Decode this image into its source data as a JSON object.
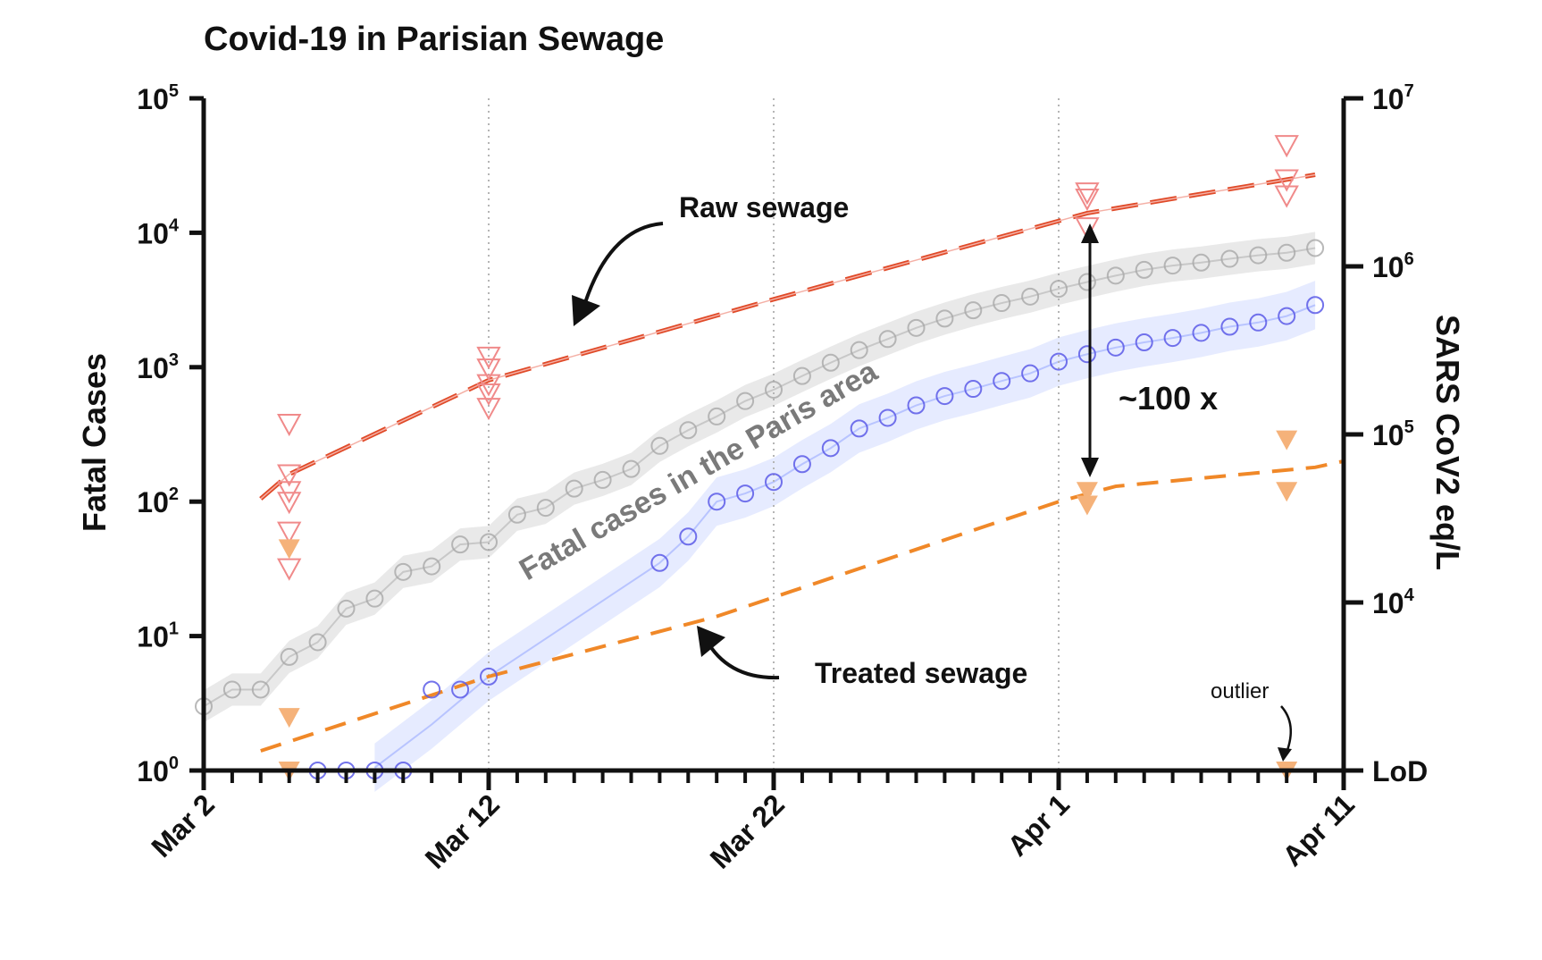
{
  "chart_data": {
    "type": "scatter",
    "title": "Covid-19 in Parisian Sewage",
    "ylabel_left": "Fatal Cases",
    "ylabel_right": "SARS CoV2 eq/L",
    "x_start_date": "Mar 2",
    "xlim_days": [
      0,
      40
    ],
    "x_tick_labels": [
      {
        "day": 0,
        "label": "Mar 2"
      },
      {
        "day": 10,
        "label": "Mar 12"
      },
      {
        "day": 20,
        "label": "Mar 22"
      },
      {
        "day": 30,
        "label": "Apr 1"
      },
      {
        "day": 40,
        "label": "Apr 11"
      }
    ],
    "grid": "vertical dotted lines at Mar 12, Mar 22, Apr 1",
    "left_axis": {
      "scale": "log10",
      "ylim": [
        1,
        100000
      ],
      "ticks": [
        {
          "exp": 0,
          "base": "10",
          "sup": "0"
        },
        {
          "exp": 1,
          "base": "10",
          "sup": "1"
        },
        {
          "exp": 2,
          "base": "10",
          "sup": "2"
        },
        {
          "exp": 3,
          "base": "10",
          "sup": "3"
        },
        {
          "exp": 4,
          "base": "10",
          "sup": "4"
        },
        {
          "exp": 5,
          "base": "10",
          "sup": "5"
        }
      ]
    },
    "right_axis": {
      "scale": "log10",
      "ticks": [
        {
          "exp": 4,
          "base": "10",
          "sup": "4",
          "label": ""
        },
        {
          "exp": 5,
          "base": "10",
          "sup": "5",
          "label": ""
        },
        {
          "exp": 6,
          "base": "10",
          "sup": "6",
          "label": ""
        },
        {
          "exp": 7,
          "base": "10",
          "sup": "7",
          "label": ""
        },
        {
          "label": "LoD",
          "exp": null,
          "base": "",
          "sup": ""
        }
      ]
    },
    "series": [
      {
        "name": "Fatal cases in the Paris area",
        "color": "#a8a8a8",
        "marker": "circle",
        "points": [
          [
            0,
            3
          ],
          [
            1,
            4
          ],
          [
            2,
            4
          ],
          [
            3,
            7
          ],
          [
            4,
            9
          ],
          [
            5,
            16
          ],
          [
            6,
            19
          ],
          [
            7,
            30
          ],
          [
            8,
            33
          ],
          [
            9,
            48
          ],
          [
            10,
            50
          ],
          [
            11,
            80
          ],
          [
            12,
            90
          ],
          [
            13,
            125
          ],
          [
            14,
            145
          ],
          [
            15,
            175
          ],
          [
            16,
            260
          ],
          [
            17,
            340
          ],
          [
            18,
            430
          ],
          [
            19,
            560
          ],
          [
            20,
            680
          ],
          [
            21,
            860
          ],
          [
            22,
            1080
          ],
          [
            23,
            1340
          ],
          [
            24,
            1620
          ],
          [
            25,
            1960
          ],
          [
            26,
            2300
          ],
          [
            27,
            2650
          ],
          [
            28,
            3000
          ],
          [
            29,
            3350
          ],
          [
            30,
            3830
          ],
          [
            31,
            4300
          ],
          [
            32,
            4800
          ],
          [
            33,
            5300
          ],
          [
            34,
            5700
          ],
          [
            35,
            6000
          ],
          [
            36,
            6400
          ],
          [
            37,
            6800
          ],
          [
            38,
            7100
          ],
          [
            39,
            7700
          ]
        ]
      },
      {
        "name": "",
        "color": "#5a5ae8",
        "marker": "circle",
        "points": [
          [
            4,
            1
          ],
          [
            5,
            1
          ],
          [
            6,
            1
          ],
          [
            7,
            1
          ],
          [
            8,
            4
          ],
          [
            9,
            4
          ],
          [
            10,
            5
          ],
          [
            16,
            35
          ],
          [
            17,
            55
          ],
          [
            18,
            100
          ],
          [
            19,
            115
          ],
          [
            20,
            140
          ],
          [
            21,
            190
          ],
          [
            22,
            250
          ],
          [
            23,
            350
          ],
          [
            24,
            420
          ],
          [
            25,
            520
          ],
          [
            26,
            610
          ],
          [
            27,
            690
          ],
          [
            28,
            790
          ],
          [
            29,
            900
          ],
          [
            30,
            1100
          ],
          [
            31,
            1250
          ],
          [
            32,
            1400
          ],
          [
            33,
            1530
          ],
          [
            34,
            1650
          ],
          [
            35,
            1800
          ],
          [
            36,
            2000
          ],
          [
            37,
            2150
          ],
          [
            38,
            2400
          ],
          [
            39,
            2900
          ]
        ]
      },
      {
        "name": "Raw sewage",
        "color": "#e04a28",
        "marker": "triangle-down-open",
        "points": [
          [
            3,
            380
          ],
          [
            3,
            160
          ],
          [
            3,
            120
          ],
          [
            3,
            100
          ],
          [
            3,
            60
          ],
          [
            3,
            32
          ],
          [
            10,
            1200
          ],
          [
            10,
            980
          ],
          [
            10,
            750
          ],
          [
            10,
            640
          ],
          [
            10,
            500
          ],
          [
            31,
            20000
          ],
          [
            31,
            18000
          ],
          [
            31,
            11000
          ],
          [
            38,
            45000
          ],
          [
            38,
            25000
          ],
          [
            38,
            19000
          ]
        ],
        "fit": [
          [
            2,
            105
          ],
          [
            3,
            160
          ],
          [
            10,
            800
          ],
          [
            20,
            3200
          ],
          [
            31,
            14000
          ],
          [
            39,
            27000
          ]
        ]
      },
      {
        "name": "Treated sewage",
        "color": "#f08828",
        "marker": "triangle-down-filled",
        "points": [
          [
            3,
            45
          ],
          [
            3,
            2.5
          ],
          [
            3,
            1
          ],
          [
            31,
            120
          ],
          [
            31,
            95
          ],
          [
            38,
            290
          ],
          [
            38,
            120
          ],
          [
            38,
            1
          ]
        ],
        "fit": [
          [
            2,
            1.4
          ],
          [
            10,
            5
          ],
          [
            18,
            14
          ],
          [
            30,
            100
          ],
          [
            32,
            130
          ],
          [
            39,
            180
          ],
          [
            40,
            200
          ]
        ]
      }
    ],
    "annotations": {
      "raw_label": "Raw sewage",
      "treated_label": "Treated sewage",
      "fatal_label": "Fatal cases in the Paris area",
      "ratio_label": "~100 x",
      "outlier_label": "outlier"
    }
  }
}
